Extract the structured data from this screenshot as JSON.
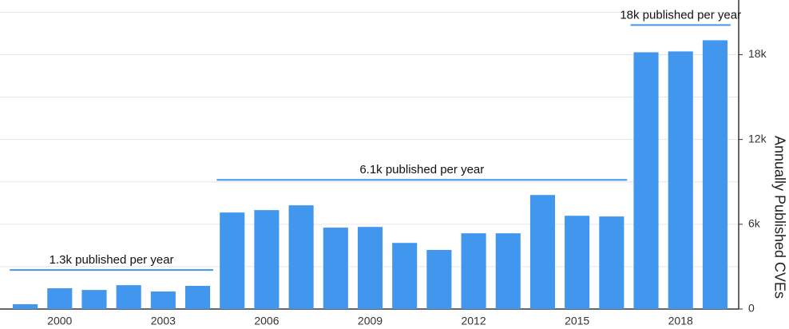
{
  "chart_data": {
    "type": "bar",
    "y_axis_label": "Annually Published CVEs",
    "x": [
      1999,
      2000,
      2001,
      2002,
      2003,
      2004,
      2005,
      2006,
      2007,
      2008,
      2009,
      2010,
      2011,
      2012,
      2013,
      2014,
      2015,
      2016,
      2017,
      2018,
      2019
    ],
    "values": [
      340,
      1470,
      1350,
      1690,
      1240,
      1640,
      6830,
      7000,
      7340,
      5760,
      5810,
      4680,
      4180,
      5360,
      5360,
      8070,
      6600,
      6550,
      18170,
      18230,
      19020
    ],
    "color": "#4196ee",
    "xlim": [
      1998.5,
      2019.5
    ],
    "xticks": [
      2000,
      2003,
      2006,
      2009,
      2012,
      2015,
      2018
    ],
    "ylim": [
      0,
      21700
    ],
    "yticks": [
      0,
      {
        "value": 6000,
        "label": "6k"
      },
      {
        "value": 12000,
        "label": "12k"
      },
      {
        "value": 18000,
        "label": "18k"
      }
    ],
    "minor_yticks": [
      3000,
      9000,
      15000,
      21000
    ],
    "grid": true,
    "annotations": [
      {
        "text": "1.3k published per year",
        "span": [
          1999,
          2004
        ]
      },
      {
        "text": "6.1k published per year",
        "span": [
          2005,
          2016
        ]
      },
      {
        "text": "18k published per year",
        "span": [
          2017,
          2019
        ]
      }
    ]
  }
}
